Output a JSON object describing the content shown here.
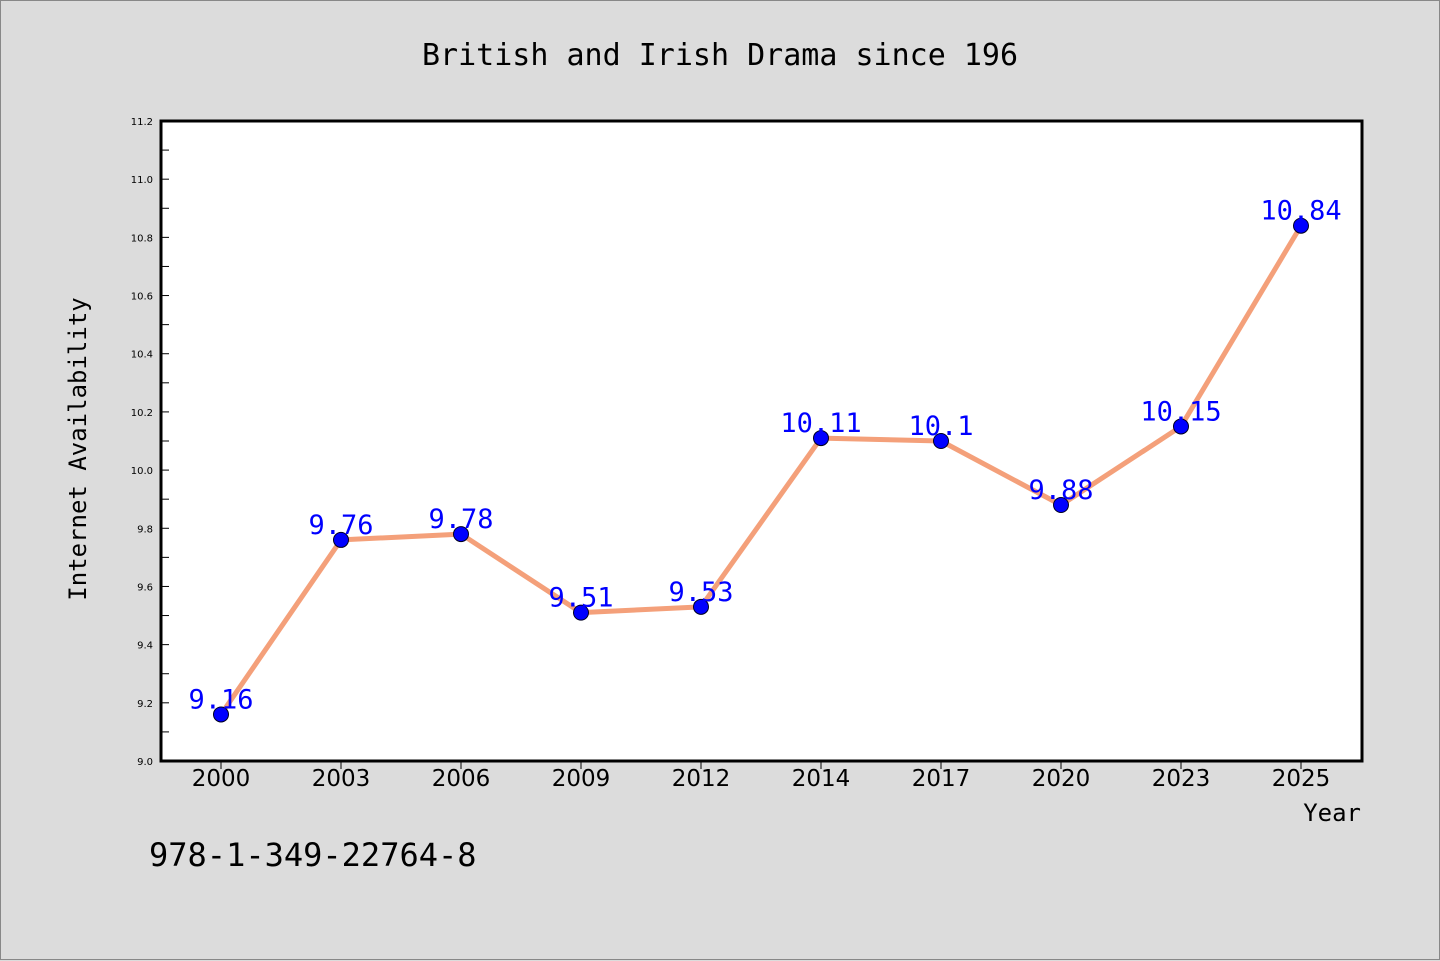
{
  "chart_data": {
    "type": "line",
    "title": "British and Irish Drama since 196",
    "xlabel": "Year",
    "ylabel": "Internet Availability",
    "categories": [
      "2000",
      "2003",
      "2006",
      "2009",
      "2012",
      "2014",
      "2017",
      "2020",
      "2023",
      "2025"
    ],
    "series": [
      {
        "values": [
          9.16,
          9.76,
          9.78,
          9.51,
          9.53,
          10.11,
          10.1,
          9.88,
          10.15,
          10.84
        ],
        "labels": [
          "9.16",
          "9.76",
          "9.78",
          "9.51",
          "9.53",
          "10.11",
          "10.1",
          "9.88",
          "10.15",
          "10.84"
        ],
        "line_color": "#f4a07a",
        "marker_color": "#0000ff"
      }
    ],
    "ylim": [
      9.0,
      11.2
    ],
    "yticks": [
      "9.0",
      "9.2",
      "9.4",
      "9.6",
      "9.8",
      "10.0",
      "10.2",
      "10.4",
      "10.6",
      "10.8",
      "11.0",
      "11.2"
    ],
    "grid": false,
    "legend": "none"
  },
  "footer": {
    "text": "978-1-349-22764-8"
  }
}
